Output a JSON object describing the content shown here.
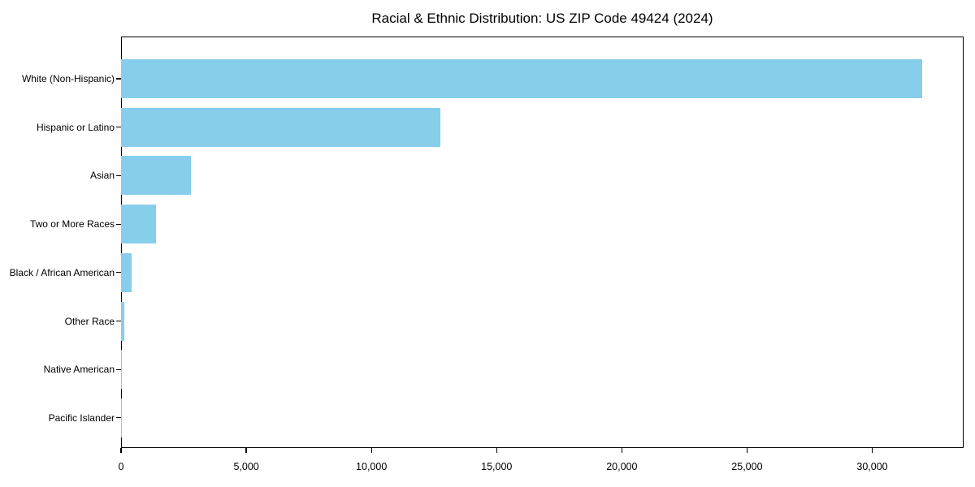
{
  "chart_data": {
    "type": "bar",
    "orientation": "horizontal",
    "title": "Racial & Ethnic Distribution: US ZIP Code 49424 (2024)",
    "categories": [
      "White (Non-Hispanic)",
      "Hispanic or Latino",
      "Asian",
      "Two or More Races",
      "Black / African American",
      "Other Race",
      "Native American",
      "Pacific Islander"
    ],
    "values": [
      32000,
      12740,
      2800,
      1390,
      420,
      120,
      35,
      10
    ],
    "xlabel": "",
    "ylabel": "",
    "xlim": [
      0,
      33650
    ],
    "x_ticks": [
      0,
      5000,
      10000,
      15000,
      20000,
      25000,
      30000
    ],
    "x_tick_labels": [
      "0",
      "5,000",
      "10,000",
      "15,000",
      "20,000",
      "25,000",
      "30,000"
    ],
    "bar_color": "#87CEEB",
    "text_color": "#000000",
    "spine_color": "#000000",
    "grid": false,
    "legend": null
  }
}
